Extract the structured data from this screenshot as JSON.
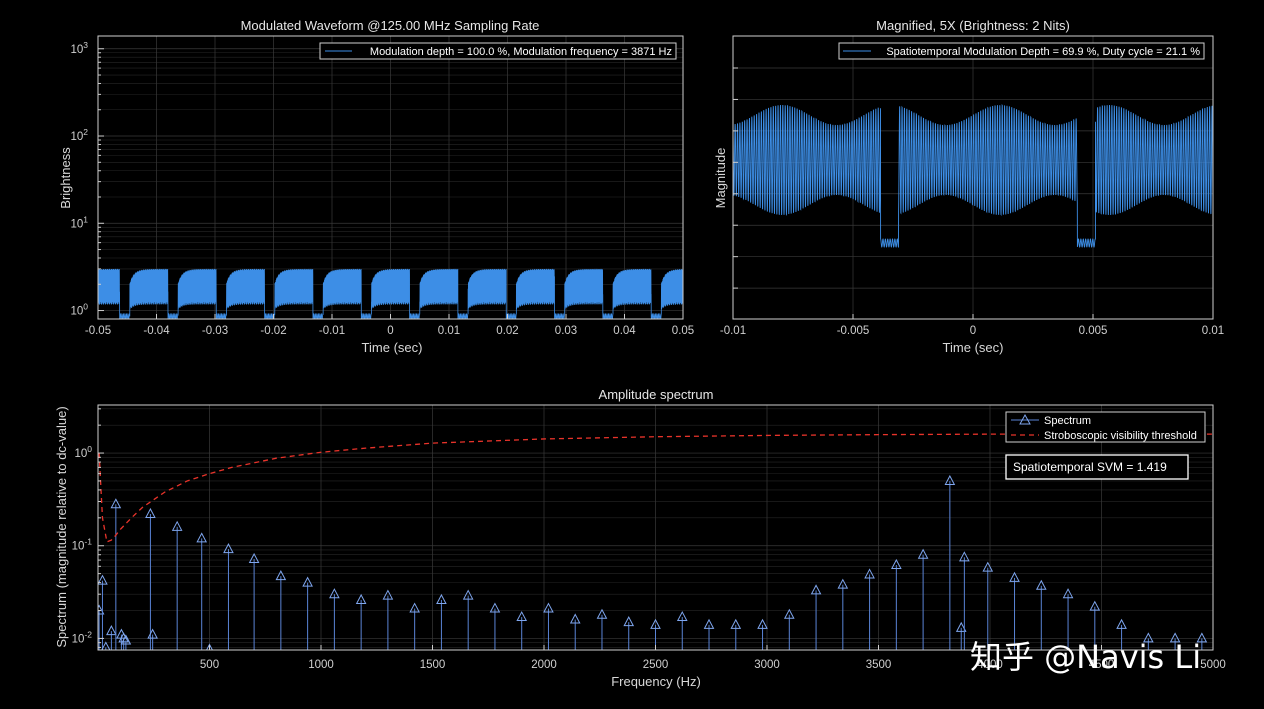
{
  "colors": {
    "bg": "#000000",
    "trace": "#3d8ee6",
    "stem": "#5a84d6",
    "threshold": "#e8332a",
    "axis": "#cfcfcf"
  },
  "watermark": "知乎 @Navis Li",
  "chart_data": [
    {
      "id": "waveform",
      "type": "line",
      "title": "Modulated Waveform @125.00 MHz Sampling Rate",
      "xlabel": "Time (sec)",
      "ylabel": "Brightness",
      "yscale": "log",
      "xlim": [
        -0.05,
        0.05
      ],
      "ylim": [
        0.8,
        1400
      ],
      "xticks": [
        -0.05,
        -0.04,
        -0.03,
        -0.02,
        -0.01,
        0,
        0.01,
        0.02,
        0.03,
        0.04,
        0.05
      ],
      "xtick_labels": [
        "-0.05",
        "-0.04",
        "-0.03",
        "-0.02",
        "-0.01",
        "0",
        "0.01",
        "0.02",
        "0.03",
        "0.04",
        "0.05"
      ],
      "yticks": [
        1,
        10,
        100,
        1000
      ],
      "ytick_bases": [
        "10",
        "10",
        "10",
        "10"
      ],
      "ytick_exps": [
        "0",
        "1",
        "2",
        "3"
      ],
      "legend": "Modulation depth = 100.0 %, Modulation frequency = 3871 Hz",
      "modulation_frequency_hz": 3871,
      "burst_period_s": 0.00826,
      "burst_off_duration_s": 0.00174,
      "level_high": 3.0,
      "level_low": 0.85
    },
    {
      "id": "magnified",
      "type": "line",
      "title": "Magnified, 5X (Brightness: 2 Nits)",
      "xlabel": "Time (sec)",
      "ylabel": "Magnitude",
      "xlim": [
        -0.01,
        0.01
      ],
      "xticks": [
        -0.01,
        -0.005,
        0,
        0.005,
        0.01
      ],
      "xtick_labels": [
        "-0.01",
        "-0.005",
        "0",
        "0.005",
        "0.01"
      ],
      "legend": "Spatiotemporal Modulation Depth = 69.9 %, Duty cycle = 21.1 %",
      "modulation_frequency_hz": 3871,
      "gaps_s": [
        [
          -0.00385,
          -0.0031
        ],
        [
          0.00435,
          0.0051
        ]
      ]
    },
    {
      "id": "spectrum",
      "type": "stem",
      "title": "Amplitude spectrum",
      "xlabel": "Frequency (Hz)",
      "ylabel": "Spectrum (magnitude relative to dc-value)",
      "yscale": "log",
      "xlim": [
        0,
        5000
      ],
      "ylim": [
        0.0075,
        3.3
      ],
      "xticks": [
        500,
        1000,
        1500,
        2000,
        2500,
        3000,
        3500,
        4000,
        4500,
        5000
      ],
      "xtick_labels": [
        "500",
        "1000",
        "1500",
        "2000",
        "2500",
        "3000",
        "3500",
        "4000",
        "4500",
        "5000"
      ],
      "yticks": [
        0.01,
        0.1,
        1
      ],
      "ytick_bases": [
        "10",
        "10",
        "10"
      ],
      "ytick_exps": [
        "-2",
        "-1",
        "0"
      ],
      "legend": [
        "Spectrum",
        "Stroboscopic visibility threshold"
      ],
      "annotation": "Spatiotemporal SVM = 1.419",
      "stems": {
        "x": [
          5,
          20,
          35,
          60,
          80,
          105,
          115,
          125,
          235,
          245,
          355,
          465,
          500,
          585,
          700,
          820,
          940,
          1060,
          1180,
          1300,
          1420,
          1540,
          1660,
          1780,
          1900,
          2020,
          2140,
          2260,
          2380,
          2500,
          2620,
          2740,
          2860,
          2980,
          3100,
          3220,
          3340,
          3460,
          3580,
          3700,
          3820,
          3871,
          3885,
          3990,
          4110,
          4230,
          4350,
          4470,
          4590,
          4710,
          4830,
          4950
        ],
        "y": [
          0.02,
          0.042,
          0.008,
          0.012,
          0.28,
          0.011,
          0.01,
          0.0095,
          0.22,
          0.011,
          0.16,
          0.12,
          0.0076,
          0.092,
          0.072,
          0.047,
          0.04,
          0.03,
          0.026,
          0.029,
          0.021,
          0.026,
          0.029,
          0.021,
          0.017,
          0.021,
          0.016,
          0.018,
          0.015,
          0.014,
          0.017,
          0.014,
          0.014,
          0.014,
          0.018,
          0.033,
          0.038,
          0.049,
          0.062,
          0.08,
          0.5,
          0.013,
          0.075,
          0.058,
          0.045,
          0.037,
          0.03,
          0.022,
          0.014,
          0.01,
          0.01,
          0.01
        ]
      },
      "threshold_curve": {
        "x": [
          5,
          20,
          40,
          60,
          80,
          100,
          150,
          200,
          300,
          400,
          500,
          600,
          800,
          1000,
          1200,
          1500,
          2000,
          2500,
          3000,
          3500,
          4000,
          4500,
          5000
        ],
        "y": [
          1.0,
          0.2,
          0.11,
          0.115,
          0.13,
          0.15,
          0.2,
          0.26,
          0.38,
          0.5,
          0.6,
          0.7,
          0.88,
          1.02,
          1.13,
          1.28,
          1.42,
          1.5,
          1.55,
          1.58,
          1.6,
          1.6,
          1.6
        ]
      }
    }
  ]
}
